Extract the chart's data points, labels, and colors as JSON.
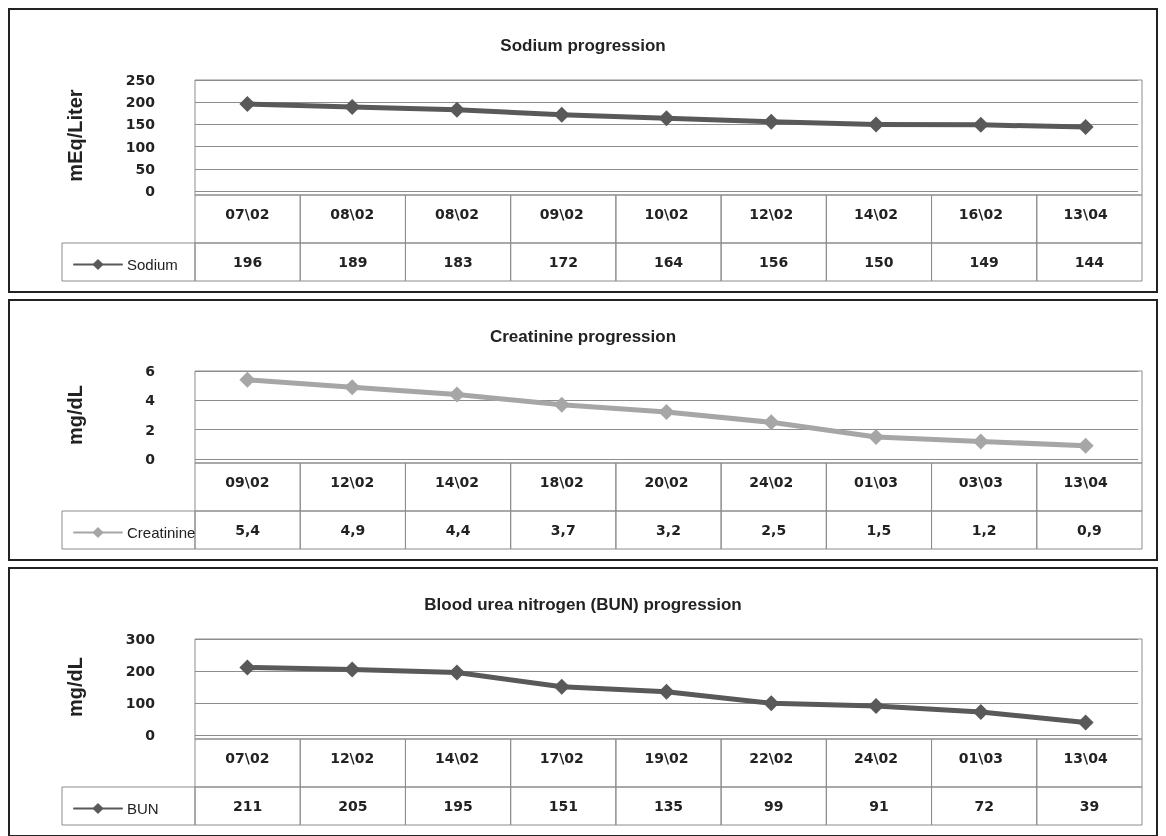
{
  "chart_data": [
    {
      "type": "line",
      "title": "Sodium progression",
      "ylabel": "mEq/Liter",
      "categories": [
        "07\\02",
        "08\\02",
        "08\\02",
        "09\\02",
        "10\\02",
        "12\\02",
        "14\\02",
        "16\\02",
        "13\\04"
      ],
      "series": [
        {
          "name": "Sodium",
          "color": "#595959",
          "values": [
            196,
            189,
            183,
            172,
            164,
            156,
            150,
            149,
            144
          ]
        }
      ],
      "ylim": [
        0,
        250
      ],
      "yticks": [
        0,
        50,
        100,
        150,
        200,
        250
      ],
      "grid": "y",
      "marker": "diamond",
      "legend": "bottom left",
      "data_labels": true
    },
    {
      "type": "line",
      "title": "Creatinine progression",
      "ylabel": "mg/dL",
      "categories": [
        "09\\02",
        "12\\02",
        "14\\02",
        "18\\02",
        "20\\02",
        "24\\02",
        "01\\03",
        "03\\03",
        "13\\04"
      ],
      "series": [
        {
          "name": "Creatinine",
          "color": "#a6a6a6",
          "values": [
            5.4,
            4.9,
            4.4,
            3.7,
            3.2,
            2.5,
            1.5,
            1.2,
            0.9
          ],
          "value_labels": [
            "5,4",
            "4,9",
            "4,4",
            "3,7",
            "3,2",
            "2,5",
            "1,5",
            "1,2",
            "0,9"
          ]
        }
      ],
      "ylim": [
        0,
        6
      ],
      "yticks": [
        0,
        2,
        4,
        6
      ],
      "grid": "y",
      "marker": "diamond",
      "legend": "bottom left"
    },
    {
      "type": "line",
      "title": "Blood urea nitrogen (BUN) progression",
      "ylabel": "mg/dL",
      "categories": [
        "07\\02",
        "12\\02",
        "14\\02",
        "17\\02",
        "19\\02",
        "22\\02",
        "24\\02",
        "01\\03",
        "13\\04"
      ],
      "series": [
        {
          "name": "BUN",
          "color": "#595959",
          "values": [
            211,
            205,
            195,
            151,
            135,
            99,
            91,
            72,
            39
          ]
        }
      ],
      "ylim": [
        0,
        300
      ],
      "yticks": [
        0,
        100,
        200,
        300
      ],
      "grid": "y",
      "marker": "diamond",
      "legend": "bottom left",
      "data_labels": true
    }
  ]
}
